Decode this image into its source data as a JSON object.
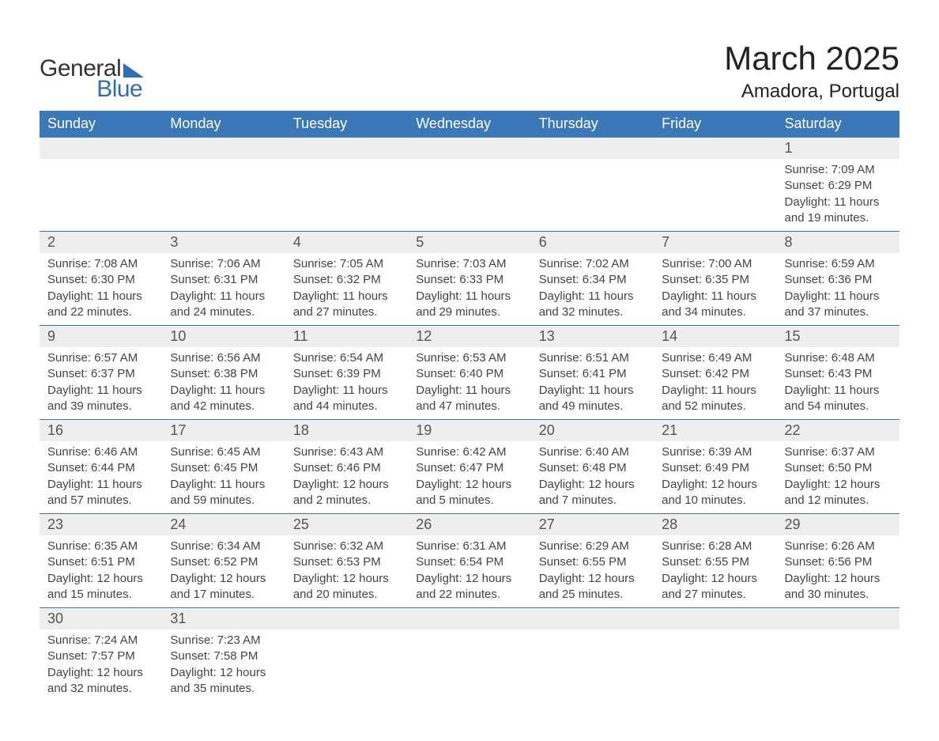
{
  "brand": {
    "general": "General",
    "blue": "Blue"
  },
  "title": {
    "month": "March 2025",
    "location": "Amadora, Portugal"
  },
  "colors": {
    "header_bg": "#3a78b7",
    "header_text": "#ffffff",
    "daynum_bg": "#eeeeee",
    "border": "#3a78b7",
    "logo_accent": "#2f6fb0",
    "text": "#333333"
  },
  "columns": [
    "Sunday",
    "Monday",
    "Tuesday",
    "Wednesday",
    "Thursday",
    "Friday",
    "Saturday"
  ],
  "weeks": [
    [
      null,
      null,
      null,
      null,
      null,
      null,
      {
        "n": "1",
        "sr": "Sunrise: 7:09 AM",
        "ss": "Sunset: 6:29 PM",
        "d1": "Daylight: 11 hours",
        "d2": "and 19 minutes."
      }
    ],
    [
      {
        "n": "2",
        "sr": "Sunrise: 7:08 AM",
        "ss": "Sunset: 6:30 PM",
        "d1": "Daylight: 11 hours",
        "d2": "and 22 minutes."
      },
      {
        "n": "3",
        "sr": "Sunrise: 7:06 AM",
        "ss": "Sunset: 6:31 PM",
        "d1": "Daylight: 11 hours",
        "d2": "and 24 minutes."
      },
      {
        "n": "4",
        "sr": "Sunrise: 7:05 AM",
        "ss": "Sunset: 6:32 PM",
        "d1": "Daylight: 11 hours",
        "d2": "and 27 minutes."
      },
      {
        "n": "5",
        "sr": "Sunrise: 7:03 AM",
        "ss": "Sunset: 6:33 PM",
        "d1": "Daylight: 11 hours",
        "d2": "and 29 minutes."
      },
      {
        "n": "6",
        "sr": "Sunrise: 7:02 AM",
        "ss": "Sunset: 6:34 PM",
        "d1": "Daylight: 11 hours",
        "d2": "and 32 minutes."
      },
      {
        "n": "7",
        "sr": "Sunrise: 7:00 AM",
        "ss": "Sunset: 6:35 PM",
        "d1": "Daylight: 11 hours",
        "d2": "and 34 minutes."
      },
      {
        "n": "8",
        "sr": "Sunrise: 6:59 AM",
        "ss": "Sunset: 6:36 PM",
        "d1": "Daylight: 11 hours",
        "d2": "and 37 minutes."
      }
    ],
    [
      {
        "n": "9",
        "sr": "Sunrise: 6:57 AM",
        "ss": "Sunset: 6:37 PM",
        "d1": "Daylight: 11 hours",
        "d2": "and 39 minutes."
      },
      {
        "n": "10",
        "sr": "Sunrise: 6:56 AM",
        "ss": "Sunset: 6:38 PM",
        "d1": "Daylight: 11 hours",
        "d2": "and 42 minutes."
      },
      {
        "n": "11",
        "sr": "Sunrise: 6:54 AM",
        "ss": "Sunset: 6:39 PM",
        "d1": "Daylight: 11 hours",
        "d2": "and 44 minutes."
      },
      {
        "n": "12",
        "sr": "Sunrise: 6:53 AM",
        "ss": "Sunset: 6:40 PM",
        "d1": "Daylight: 11 hours",
        "d2": "and 47 minutes."
      },
      {
        "n": "13",
        "sr": "Sunrise: 6:51 AM",
        "ss": "Sunset: 6:41 PM",
        "d1": "Daylight: 11 hours",
        "d2": "and 49 minutes."
      },
      {
        "n": "14",
        "sr": "Sunrise: 6:49 AM",
        "ss": "Sunset: 6:42 PM",
        "d1": "Daylight: 11 hours",
        "d2": "and 52 minutes."
      },
      {
        "n": "15",
        "sr": "Sunrise: 6:48 AM",
        "ss": "Sunset: 6:43 PM",
        "d1": "Daylight: 11 hours",
        "d2": "and 54 minutes."
      }
    ],
    [
      {
        "n": "16",
        "sr": "Sunrise: 6:46 AM",
        "ss": "Sunset: 6:44 PM",
        "d1": "Daylight: 11 hours",
        "d2": "and 57 minutes."
      },
      {
        "n": "17",
        "sr": "Sunrise: 6:45 AM",
        "ss": "Sunset: 6:45 PM",
        "d1": "Daylight: 11 hours",
        "d2": "and 59 minutes."
      },
      {
        "n": "18",
        "sr": "Sunrise: 6:43 AM",
        "ss": "Sunset: 6:46 PM",
        "d1": "Daylight: 12 hours",
        "d2": "and 2 minutes."
      },
      {
        "n": "19",
        "sr": "Sunrise: 6:42 AM",
        "ss": "Sunset: 6:47 PM",
        "d1": "Daylight: 12 hours",
        "d2": "and 5 minutes."
      },
      {
        "n": "20",
        "sr": "Sunrise: 6:40 AM",
        "ss": "Sunset: 6:48 PM",
        "d1": "Daylight: 12 hours",
        "d2": "and 7 minutes."
      },
      {
        "n": "21",
        "sr": "Sunrise: 6:39 AM",
        "ss": "Sunset: 6:49 PM",
        "d1": "Daylight: 12 hours",
        "d2": "and 10 minutes."
      },
      {
        "n": "22",
        "sr": "Sunrise: 6:37 AM",
        "ss": "Sunset: 6:50 PM",
        "d1": "Daylight: 12 hours",
        "d2": "and 12 minutes."
      }
    ],
    [
      {
        "n": "23",
        "sr": "Sunrise: 6:35 AM",
        "ss": "Sunset: 6:51 PM",
        "d1": "Daylight: 12 hours",
        "d2": "and 15 minutes."
      },
      {
        "n": "24",
        "sr": "Sunrise: 6:34 AM",
        "ss": "Sunset: 6:52 PM",
        "d1": "Daylight: 12 hours",
        "d2": "and 17 minutes."
      },
      {
        "n": "25",
        "sr": "Sunrise: 6:32 AM",
        "ss": "Sunset: 6:53 PM",
        "d1": "Daylight: 12 hours",
        "d2": "and 20 minutes."
      },
      {
        "n": "26",
        "sr": "Sunrise: 6:31 AM",
        "ss": "Sunset: 6:54 PM",
        "d1": "Daylight: 12 hours",
        "d2": "and 22 minutes."
      },
      {
        "n": "27",
        "sr": "Sunrise: 6:29 AM",
        "ss": "Sunset: 6:55 PM",
        "d1": "Daylight: 12 hours",
        "d2": "and 25 minutes."
      },
      {
        "n": "28",
        "sr": "Sunrise: 6:28 AM",
        "ss": "Sunset: 6:55 PM",
        "d1": "Daylight: 12 hours",
        "d2": "and 27 minutes."
      },
      {
        "n": "29",
        "sr": "Sunrise: 6:26 AM",
        "ss": "Sunset: 6:56 PM",
        "d1": "Daylight: 12 hours",
        "d2": "and 30 minutes."
      }
    ],
    [
      {
        "n": "30",
        "sr": "Sunrise: 7:24 AM",
        "ss": "Sunset: 7:57 PM",
        "d1": "Daylight: 12 hours",
        "d2": "and 32 minutes."
      },
      {
        "n": "31",
        "sr": "Sunrise: 7:23 AM",
        "ss": "Sunset: 7:58 PM",
        "d1": "Daylight: 12 hours",
        "d2": "and 35 minutes."
      },
      null,
      null,
      null,
      null,
      null
    ]
  ]
}
